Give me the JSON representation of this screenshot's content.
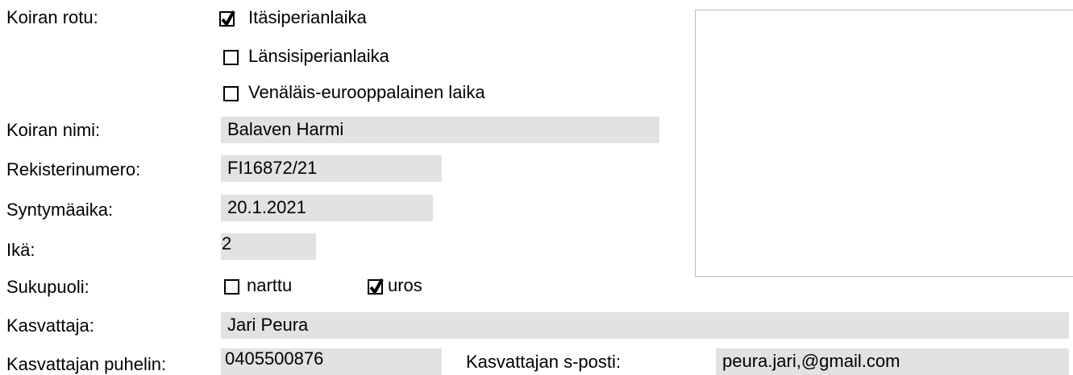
{
  "breed": {
    "label": "Koiran rotu:",
    "options": [
      {
        "label": "Itäsiperianlaika",
        "checked": true
      },
      {
        "label": "Länsisiperianlaika",
        "checked": false
      },
      {
        "label": "Venäläis-eurooppalainen laika",
        "checked": false
      }
    ]
  },
  "fields": [
    {
      "label": "Koiran nimi:",
      "value": "Balaven Harmi"
    },
    {
      "label": "Rekisterinumero:",
      "value": "FI16872/21"
    },
    {
      "label": "Syntymäaika:",
      "value": "20.1.2021"
    },
    {
      "label": "Ikä:",
      "value": "2"
    }
  ],
  "sex": {
    "label": "Sukupuoli:",
    "options": [
      {
        "label": "narttu",
        "checked": false
      },
      {
        "label": "uros",
        "checked": true
      }
    ]
  },
  "breeder": {
    "label": "Kasvattaja:",
    "value": "Jari Peura"
  },
  "phone": {
    "label": "Kasvattajan puhelin:",
    "value": "0405500876"
  },
  "email": {
    "label": "Kasvattajan s-posti:",
    "value": "peura.jari,@gmail.com"
  }
}
